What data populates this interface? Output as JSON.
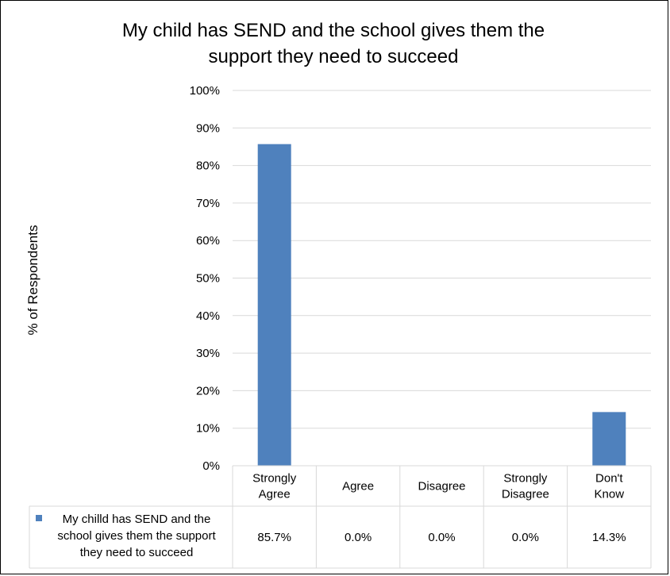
{
  "chart_data": {
    "type": "bar",
    "title": "My child has SEND and the school gives them the support they need to succeed",
    "title_lines": [
      "My child has SEND and the school gives them the",
      "support they need to succeed"
    ],
    "ylabel": "% of Respondents",
    "xlabel": "",
    "categories": [
      [
        "Strongly",
        "Agree"
      ],
      [
        "Agree"
      ],
      [
        "Disagree"
      ],
      [
        "Strongly",
        "Disagree"
      ],
      [
        "Don't",
        "Know"
      ]
    ],
    "series": [
      {
        "name_lines": [
          "My chilld has SEND and the",
          "school gives them the support",
          "they need to succeed"
        ],
        "values": [
          85.7,
          0.0,
          0.0,
          0.0,
          14.3
        ],
        "value_labels": [
          "85.7%",
          "0.0%",
          "0.0%",
          "0.0%",
          "14.3%"
        ],
        "color": "#4F81BD"
      }
    ],
    "ylim": [
      0,
      100
    ],
    "yticks": [
      "0%",
      "10%",
      "20%",
      "30%",
      "40%",
      "50%",
      "60%",
      "70%",
      "80%",
      "90%",
      "100%"
    ],
    "grid": true,
    "legend": "data-table"
  }
}
